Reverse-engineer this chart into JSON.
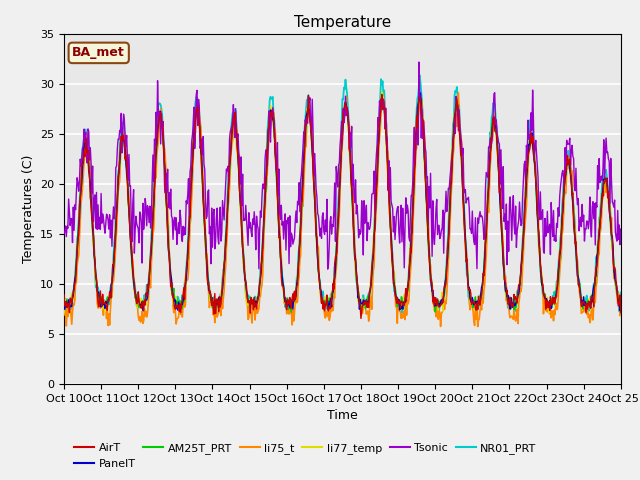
{
  "title": "Temperature",
  "xlabel": "Time",
  "ylabel": "Temperatures (C)",
  "ylim": [
    0,
    35
  ],
  "background_color": "#f0f0f0",
  "plot_bg_color": "#e8e8e8",
  "grid_color": "#ffffff",
  "annotation_text": "BA_met",
  "annotation_bg": "#f5f5dc",
  "annotation_border": "#8B4513",
  "annotation_text_color": "#8B0000",
  "xtick_labels": [
    "Oct 10",
    "Oct 11",
    "Oct 12",
    "Oct 13",
    "Oct 14",
    "Oct 15",
    "Oct 16",
    "Oct 17",
    "Oct 18",
    "Oct 19",
    "Oct 20",
    "Oct 21",
    "Oct 22",
    "Oct 23",
    "Oct 24",
    "Oct 25"
  ],
  "series": {
    "AirT": {
      "color": "#cc0000",
      "lw": 1.0
    },
    "PanelT": {
      "color": "#0000cc",
      "lw": 1.0
    },
    "AM25T_PRT": {
      "color": "#00cc00",
      "lw": 1.0
    },
    "li75_t": {
      "color": "#ff8800",
      "lw": 1.2
    },
    "li77_temp": {
      "color": "#dddd00",
      "lw": 1.0
    },
    "Tsonic": {
      "color": "#9900cc",
      "lw": 1.0
    },
    "NR01_PRT": {
      "color": "#00cccc",
      "lw": 1.3
    }
  },
  "legend_order": [
    "AirT",
    "PanelT",
    "AM25T_PRT",
    "li75_t",
    "li77_temp",
    "Tsonic",
    "NR01_PRT"
  ]
}
